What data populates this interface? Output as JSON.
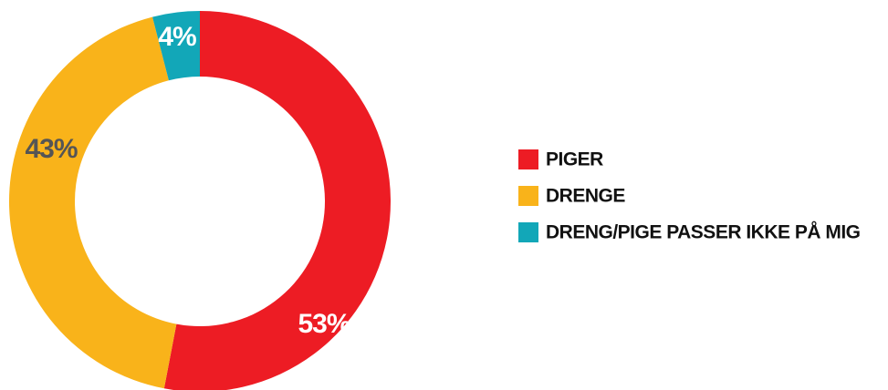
{
  "chart_data": {
    "type": "pie",
    "donut": true,
    "categories": [
      "PIGER",
      "DRENGE",
      "DRENG/PIGE PASSER IKKE PÅ MIG"
    ],
    "values": [
      53,
      43,
      4
    ],
    "value_labels": [
      "53%",
      "43%",
      "4%"
    ],
    "colors": [
      "#ed1c24",
      "#f9b31a",
      "#12a7b8"
    ],
    "label_colors": [
      "#ffffff",
      "#555555",
      "#ffffff"
    ],
    "legend": "right"
  }
}
